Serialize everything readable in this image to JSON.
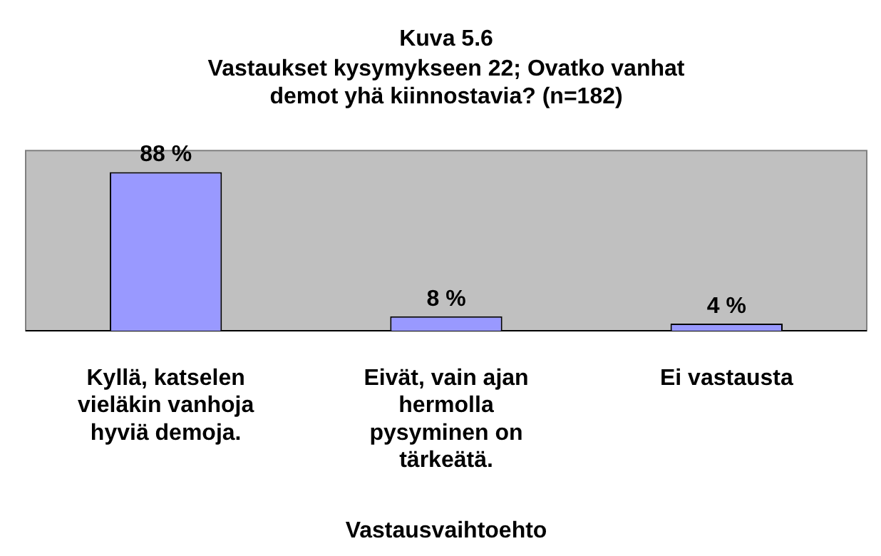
{
  "chart_data": {
    "type": "bar",
    "title": "Kuva 5.6",
    "subtitle": "Vastaukset kysymykseen 22; Ovatko vanhat demot yhä kiinnostavia? (n=182)",
    "xlabel": "Vastausvaihtoehto",
    "categories": [
      "Kyllä, katselen vieläkin vanhoja hyviä demoja.",
      "Eivät, vain ajan hermolla pysyminen on tärkeätä.",
      "Ei vastausta"
    ],
    "values": [
      88,
      8,
      4
    ],
    "value_labels": [
      "88 %",
      "8 %",
      "4 %"
    ],
    "color": "#9999ff",
    "tick_labels": "x",
    "legend": false
  }
}
